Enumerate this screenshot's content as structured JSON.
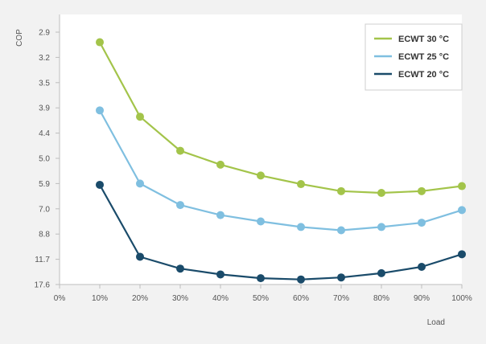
{
  "chart_data": {
    "type": "line",
    "title": "",
    "xlabel": "Load",
    "ylabel": "COP",
    "x_ticks": [
      "0%",
      "10%",
      "20%",
      "30%",
      "40%",
      "50%",
      "60%",
      "70%",
      "80%",
      "90%",
      "100%"
    ],
    "y_ticks": [
      "2.9",
      "3.2",
      "3.5",
      "3.9",
      "4.4",
      "5.0",
      "5.9",
      "7.0",
      "8.8",
      "11.7",
      "17.6"
    ],
    "xlim": [
      0,
      100
    ],
    "ylim_index": [
      0,
      10
    ],
    "y_axis_note": "y values are expressed as fractional positions on the labeled tick index scale (0 = 2.9 at top, 10 = 17.6 at bottom)",
    "x": [
      10,
      20,
      30,
      40,
      50,
      60,
      70,
      80,
      90,
      100
    ],
    "series": [
      {
        "name": "ECWT 30 °C",
        "color": "#a3c44a",
        "values": [
          0.4,
          3.35,
          4.7,
          5.25,
          5.68,
          6.02,
          6.3,
          6.37,
          6.3,
          6.1
        ]
      },
      {
        "name": "ECWT 25 °C",
        "color": "#7fbfe0",
        "values": [
          3.1,
          6.0,
          6.85,
          7.25,
          7.5,
          7.72,
          7.85,
          7.72,
          7.55,
          7.05
        ]
      },
      {
        "name": "ECWT 20 °C",
        "color": "#1a4b6a",
        "values": [
          6.05,
          8.9,
          9.37,
          9.6,
          9.75,
          9.8,
          9.72,
          9.55,
          9.3,
          8.8
        ]
      }
    ],
    "legend_position": "top-right",
    "grid": false
  }
}
